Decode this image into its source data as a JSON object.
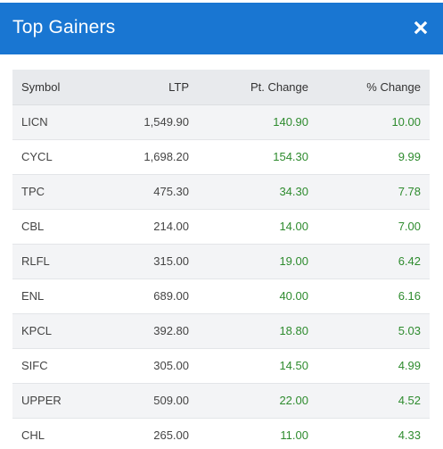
{
  "modal": {
    "title": "Top Gainers",
    "close_icon": "close-icon"
  },
  "colors": {
    "header_bg": "#1976d2",
    "header_text": "#ffffff",
    "positive": "#2e8b2e"
  },
  "table": {
    "headers": {
      "symbol": "Symbol",
      "ltp": "LTP",
      "pt_change": "Pt. Change",
      "pct_change": "% Change"
    },
    "rows": [
      {
        "symbol": "LICN",
        "ltp": "1,549.90",
        "pt_change": "140.90",
        "pct_change": "10.00"
      },
      {
        "symbol": "CYCL",
        "ltp": "1,698.20",
        "pt_change": "154.30",
        "pct_change": "9.99"
      },
      {
        "symbol": "TPC",
        "ltp": "475.30",
        "pt_change": "34.30",
        "pct_change": "7.78"
      },
      {
        "symbol": "CBL",
        "ltp": "214.00",
        "pt_change": "14.00",
        "pct_change": "7.00"
      },
      {
        "symbol": "RLFL",
        "ltp": "315.00",
        "pt_change": "19.00",
        "pct_change": "6.42"
      },
      {
        "symbol": "ENL",
        "ltp": "689.00",
        "pt_change": "40.00",
        "pct_change": "6.16"
      },
      {
        "symbol": "KPCL",
        "ltp": "392.80",
        "pt_change": "18.80",
        "pct_change": "5.03"
      },
      {
        "symbol": "SIFC",
        "ltp": "305.00",
        "pt_change": "14.50",
        "pct_change": "4.99"
      },
      {
        "symbol": "UPPER",
        "ltp": "509.00",
        "pt_change": "22.00",
        "pct_change": "4.52"
      },
      {
        "symbol": "CHL",
        "ltp": "265.00",
        "pt_change": "11.00",
        "pct_change": "4.33"
      }
    ]
  }
}
